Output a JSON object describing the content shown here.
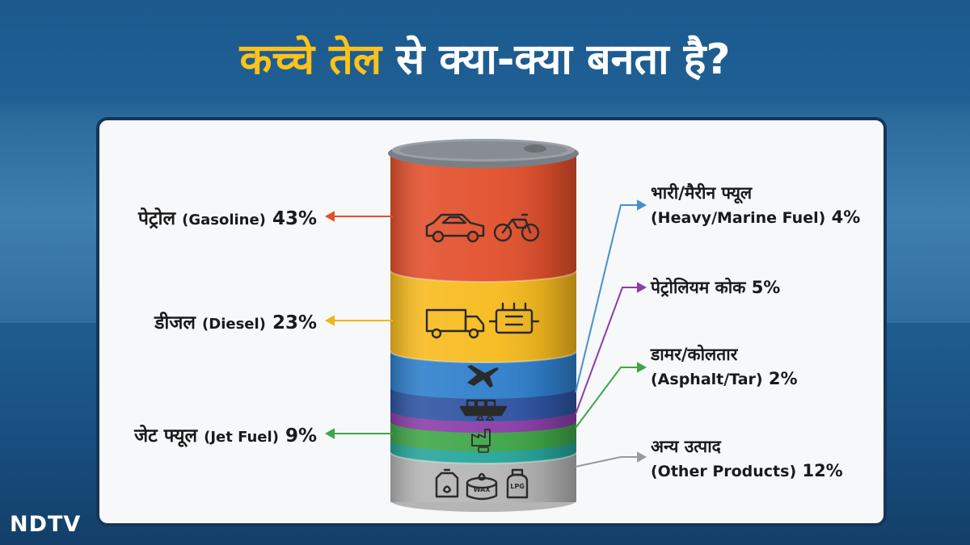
{
  "headline": {
    "highlight": "कच्चे तेल",
    "rest": " से क्या-क्या बनता है?"
  },
  "brand": {
    "logo": "NDTV"
  },
  "colors": {
    "petrol": "#e2502c",
    "diesel": "#f7bb1e",
    "jet": "#2f7fcc",
    "marine": "#2e54a2",
    "coke": "#8a3ea8",
    "asphalt": "#3fa648",
    "teal": "#26a59a",
    "other": "#b5b5b5"
  },
  "products": {
    "petrol": {
      "hi": "पेट्रोल",
      "en": "(Gasoline)",
      "pct": "43%",
      "value": 43,
      "icon": "car-motorbike-icon"
    },
    "diesel": {
      "hi": "डीजल",
      "en": "(Diesel)",
      "pct": "23%",
      "value": 23,
      "icon": "truck-engine-icon"
    },
    "jet": {
      "hi": "जेट फ्यूल",
      "en": "(Jet Fuel)",
      "pct": "9%",
      "value": 9,
      "icon": "airplane-icon"
    },
    "marine": {
      "hi": "भारी/मैरीन फ्यूल",
      "en": "(Heavy/Marine Fuel)",
      "pct": "4%",
      "value": 4,
      "icon": "cargo-ship-icon"
    },
    "coke": {
      "hi": "पेट्रोलियम कोक",
      "pct": "5%",
      "value": 5,
      "icon": "coke-icon"
    },
    "asphalt": {
      "hi": "डामर/कोलतार",
      "en": "(Asphalt/Tar)",
      "pct": "2%",
      "value": 2,
      "icon": "factory-icon"
    },
    "other": {
      "hi": "अन्य उत्पाद",
      "en": "(Other Products)",
      "pct": "12%",
      "value": 12,
      "icon": "oil-wax-lpg-icon"
    },
    "lpg_text": "LPG",
    "wax_text": "WAX"
  }
}
